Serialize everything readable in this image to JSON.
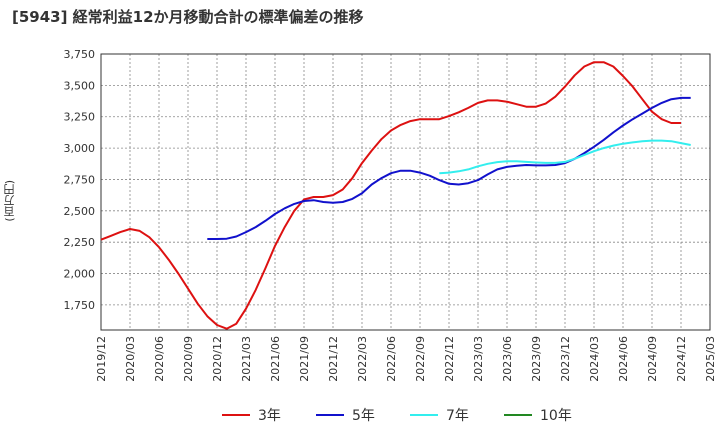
{
  "title": "[5943]  経常利益12か月移動合計の標準偏差の推移",
  "ylabel": "(百万円)",
  "colors": {
    "3y": "#dd1111",
    "5y": "#1111cc",
    "7y": "#33eeee",
    "10y": "#228822",
    "grid": "#888888",
    "axis": "#333333"
  },
  "legend": [
    {
      "label": "3年",
      "color": "#dd1111"
    },
    {
      "label": "5年",
      "color": "#1111cc"
    },
    {
      "label": "7年",
      "color": "#33eeee"
    },
    {
      "label": "10年",
      "color": "#228822"
    }
  ],
  "chart_data": {
    "type": "line",
    "title": "[5943]  経常利益12か月移動合計の標準偏差の推移",
    "ylabel": "(百万円)",
    "xlabel": "",
    "ylim": [
      1550,
      3750
    ],
    "yticks": [
      1750,
      2000,
      2250,
      2500,
      2750,
      3000,
      3250,
      3500,
      3750
    ],
    "x_start": "2019-12",
    "x_end": "2025-03",
    "xticks": [
      "2019/12",
      "2020/03",
      "2020/06",
      "2020/09",
      "2020/12",
      "2021/03",
      "2021/06",
      "2021/09",
      "2021/12",
      "2022/03",
      "2022/06",
      "2022/09",
      "2022/12",
      "2023/03",
      "2023/06",
      "2023/09",
      "2023/12",
      "2024/03",
      "2024/06",
      "2024/09",
      "2024/12",
      "2025/03"
    ],
    "series": [
      {
        "name": "3年",
        "color": "#dd1111",
        "start": "2019-12",
        "values": [
          2270,
          2300,
          2330,
          2355,
          2340,
          2290,
          2210,
          2110,
          2000,
          1880,
          1760,
          1660,
          1590,
          1560,
          1600,
          1720,
          1870,
          2040,
          2220,
          2370,
          2500,
          2590,
          2610,
          2610,
          2625,
          2670,
          2760,
          2880,
          2980,
          3070,
          3140,
          3185,
          3215,
          3230,
          3230,
          3230,
          3255,
          3285,
          3320,
          3360,
          3380,
          3380,
          3370,
          3350,
          3330,
          3330,
          3355,
          3410,
          3490,
          3580,
          3650,
          3685,
          3685,
          3650,
          3575,
          3490,
          3390,
          3290,
          3230,
          3200,
          3200
        ]
      },
      {
        "name": "5年",
        "color": "#1111cc",
        "start": "2020-11",
        "values": [
          2275,
          2275,
          2278,
          2295,
          2330,
          2370,
          2420,
          2475,
          2520,
          2555,
          2578,
          2585,
          2570,
          2565,
          2570,
          2595,
          2640,
          2710,
          2760,
          2800,
          2820,
          2820,
          2805,
          2780,
          2745,
          2715,
          2710,
          2720,
          2745,
          2790,
          2830,
          2850,
          2860,
          2865,
          2862,
          2862,
          2865,
          2880,
          2915,
          2960,
          3010,
          3065,
          3125,
          3180,
          3230,
          3275,
          3320,
          3360,
          3390,
          3400,
          3400
        ]
      },
      {
        "name": "7年",
        "color": "#33eeee",
        "start": "2022-11",
        "values": [
          2800,
          2805,
          2815,
          2830,
          2855,
          2875,
          2888,
          2895,
          2895,
          2890,
          2885,
          2882,
          2882,
          2890,
          2915,
          2945,
          2975,
          3000,
          3020,
          3035,
          3045,
          3055,
          3060,
          3060,
          3055,
          3040,
          3025
        ]
      },
      {
        "name": "10年",
        "color": "#228822",
        "start": "2025-03",
        "values": []
      }
    ]
  }
}
